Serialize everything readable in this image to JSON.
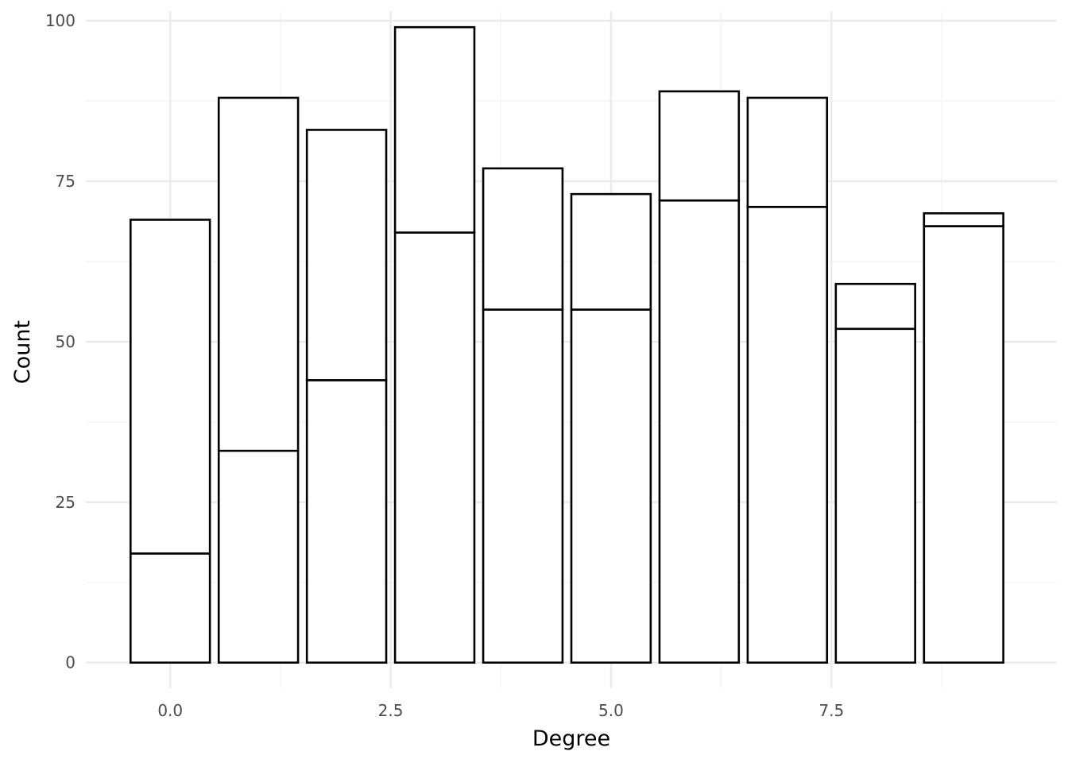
{
  "chart_data": {
    "type": "bar",
    "stacked": true,
    "x": [
      0,
      1,
      2,
      3,
      4,
      5,
      6,
      7,
      8,
      9
    ],
    "series": [
      {
        "values": [
          17,
          33,
          44,
          67,
          55,
          55,
          72,
          71,
          52,
          68
        ]
      },
      {
        "values": [
          52,
          55,
          39,
          32,
          22,
          18,
          17,
          17,
          7,
          2
        ]
      }
    ],
    "totals": [
      69,
      88,
      83,
      99,
      77,
      73,
      89,
      88,
      59,
      70
    ],
    "xlabel": "Degree",
    "ylabel": "Count",
    "xlim": [
      -0.9575,
      10.0575
    ],
    "ylim": [
      -4,
      101.5
    ],
    "x_ticks": [
      0.0,
      2.5,
      5.0,
      7.5
    ],
    "x_tick_labels": [
      "0.0",
      "2.5",
      "5.0",
      "7.5"
    ],
    "y_ticks": [
      0,
      25,
      50,
      75,
      100
    ],
    "y_tick_labels": [
      "0",
      "25",
      "50",
      "75",
      "100"
    ],
    "bar_width": 0.9,
    "grid": true,
    "legend": "none",
    "colors": {
      "fill": "#ffffff",
      "outline": "#000000",
      "grid": "#ebebeb"
    }
  }
}
